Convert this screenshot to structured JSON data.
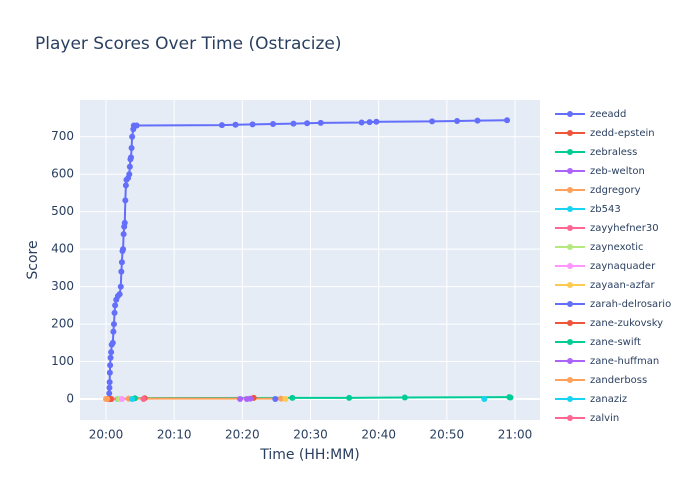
{
  "chart_data": {
    "type": "line",
    "title": "Player Scores Over Time (Ostracize)",
    "x_label": "Time (HH:MM)",
    "y_label": "Score",
    "xlim": [
      "19:56:11",
      "21:03:40"
    ],
    "xticks": [
      "20:00",
      "20:10",
      "20:20",
      "20:30",
      "20:40",
      "20:50",
      "21:00"
    ],
    "ylim": [
      -56,
      798
    ],
    "yticks": [
      0,
      100,
      200,
      300,
      400,
      500,
      600,
      700
    ],
    "grid": true,
    "series": [
      {
        "name": "zeeadd",
        "color": "#636efa",
        "x": [
          "20:00:25",
          "20:00:28",
          "20:00:30",
          "20:00:32",
          "20:00:34",
          "20:00:36",
          "20:00:40",
          "20:00:45",
          "20:00:50",
          "20:01:00",
          "20:01:05",
          "20:01:10",
          "20:01:15",
          "20:01:20",
          "20:01:30",
          "20:01:45",
          "20:02:00",
          "20:02:10",
          "20:02:15",
          "20:02:20",
          "20:02:25",
          "20:02:30",
          "20:02:35",
          "20:02:40",
          "20:02:45",
          "20:02:50",
          "20:02:55",
          "20:03:00",
          "20:03:15",
          "20:03:25",
          "20:03:30",
          "20:03:35",
          "20:03:40",
          "20:03:45",
          "20:03:50",
          "20:04:00",
          "20:04:05",
          "20:04:30",
          "20:17:00",
          "20:19:00",
          "20:21:30",
          "20:24:30",
          "20:27:30",
          "20:29:30",
          "20:31:30",
          "20:37:30",
          "20:38:40",
          "20:39:40",
          "20:47:50",
          "20:51:30",
          "20:54:30",
          "20:58:50"
        ],
        "values": [
          0,
          15,
          30,
          45,
          70,
          90,
          110,
          125,
          145,
          150,
          180,
          200,
          230,
          250,
          265,
          275,
          280,
          300,
          340,
          365,
          395,
          400,
          440,
          460,
          470,
          530,
          570,
          585,
          590,
          600,
          620,
          640,
          645,
          670,
          700,
          720,
          730,
          730,
          731,
          732,
          733,
          734,
          735,
          736,
          737,
          738,
          739,
          740,
          741,
          742,
          743,
          744
        ]
      },
      {
        "name": "zedd-epstein",
        "color": "#EF553B",
        "x": [
          "20:00:30",
          "20:05:40",
          "20:21:40"
        ],
        "values": [
          0,
          2,
          3
        ]
      },
      {
        "name": "zebraless",
        "color": "#00cc96",
        "x": [
          "20:01:45",
          "20:04:15",
          "20:27:20",
          "20:35:40",
          "20:43:50",
          "20:59:10"
        ],
        "values": [
          0,
          2,
          3,
          3,
          4,
          5
        ]
      },
      {
        "name": "zeb-welton",
        "color": "#ab63fa",
        "x": [
          "20:20:40",
          "20:21:10"
        ],
        "values": [
          0,
          1
        ]
      },
      {
        "name": "zdgregory",
        "color": "#FFA15A",
        "x": [
          "20:00:00",
          "20:03:20",
          "20:25:40"
        ],
        "values": [
          0,
          1,
          1
        ]
      },
      {
        "name": "zb543",
        "color": "#19d3f3",
        "x": [
          "20:55:30"
        ],
        "values": [
          0
        ]
      },
      {
        "name": "zayyhefner30",
        "color": "#FF6692",
        "x": [
          "20:00:50"
        ],
        "values": [
          0
        ]
      },
      {
        "name": "zaynexotic",
        "color": "#B6E880",
        "x": [
          "20:01:50"
        ],
        "values": [
          0
        ]
      },
      {
        "name": "zaynaquader",
        "color": "#FF97FF",
        "x": [
          "20:02:20"
        ],
        "values": [
          0
        ]
      },
      {
        "name": "zayaan-azfar",
        "color": "#FECB52",
        "x": [
          "20:26:20"
        ],
        "values": [
          0
        ]
      },
      {
        "name": "zarah-delrosario",
        "color": "#636efa",
        "x": [
          "20:24:50"
        ],
        "values": [
          0
        ]
      },
      {
        "name": "zane-zukovsky",
        "color": "#EF553B",
        "x": [
          "20:00:40"
        ],
        "values": [
          0
        ]
      },
      {
        "name": "zane-swift",
        "color": "#00cc96",
        "x": [
          "20:59:20"
        ],
        "values": [
          4
        ]
      },
      {
        "name": "zane-huffman",
        "color": "#ab63fa",
        "x": [
          "20:19:40"
        ],
        "values": [
          0
        ]
      },
      {
        "name": "zanderboss",
        "color": "#FFA15A",
        "x": [
          "20:00:10"
        ],
        "values": [
          0
        ]
      },
      {
        "name": "zanaziz",
        "color": "#19d3f3",
        "x": [
          "20:03:50"
        ],
        "values": [
          0
        ]
      },
      {
        "name": "zalvin",
        "color": "#FF6692",
        "x": [
          "20:05:30"
        ],
        "values": [
          0
        ]
      }
    ]
  }
}
